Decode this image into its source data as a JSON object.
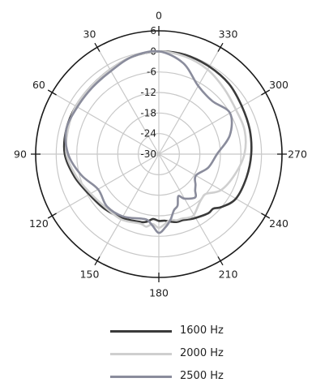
{
  "chart_data": {
    "type": "polar-line",
    "angle_labels": [
      "0",
      "30",
      "60",
      "90",
      "120",
      "150",
      "180",
      "210",
      "240",
      "270",
      "300",
      "330"
    ],
    "ring_labels": [
      "6",
      "0",
      "-6",
      "-12",
      "-18",
      "-24",
      "-30"
    ],
    "radial_range_db": [
      -30,
      6
    ],
    "ring_step_db": 6,
    "angle_direction": "counterclockwise",
    "grid": true,
    "legend_position": "bottom",
    "series": [
      {
        "name": "1600 Hz",
        "color": "#3a3a3a",
        "angles_deg": [
          0,
          15,
          30,
          45,
          60,
          75,
          90,
          105,
          120,
          135,
          150,
          165,
          170,
          175,
          180,
          185,
          190,
          195,
          200,
          205,
          210,
          220,
          225,
          230,
          240,
          255,
          270,
          285,
          300,
          315,
          330,
          345
        ],
        "values_db": [
          0,
          -0.5,
          -1.5,
          -2,
          -2,
          -2,
          -2.5,
          -4.5,
          -6.5,
          -7.5,
          -8.5,
          -9.5,
          -10,
          -11,
          -10.5,
          -10.5,
          -10,
          -9.5,
          -9.5,
          -9,
          -8.5,
          -7.5,
          -7.5,
          -6,
          -4,
          -3.5,
          -3,
          -2.5,
          -2,
          -1,
          -0.5,
          0
        ]
      },
      {
        "name": "2000 Hz",
        "color": "#cfcfcf",
        "angles_deg": [
          0,
          15,
          30,
          45,
          60,
          75,
          90,
          105,
          120,
          135,
          150,
          165,
          170,
          175,
          180,
          185,
          190,
          195,
          200,
          205,
          210,
          220,
          225,
          230,
          240,
          255,
          270,
          285,
          300,
          315,
          330,
          345
        ],
        "values_db": [
          0,
          -0.5,
          -1.5,
          -2,
          -2,
          -2.5,
          -3,
          -5,
          -7,
          -8,
          -8,
          -9,
          -8.5,
          -9.5,
          -8.5,
          -9.5,
          -10.5,
          -10,
          -10,
          -9.5,
          -9.5,
          -11.5,
          -12,
          -12,
          -9,
          -7,
          -5,
          -4,
          -4,
          -3,
          -1.5,
          -0.5
        ]
      },
      {
        "name": "2500 Hz",
        "color": "#8a8c9c",
        "angles_deg": [
          0,
          15,
          30,
          45,
          60,
          75,
          90,
          105,
          120,
          135,
          150,
          165,
          170,
          175,
          180,
          185,
          190,
          195,
          200,
          205,
          210,
          220,
          225,
          230,
          240,
          255,
          270,
          285,
          300,
          315,
          330,
          345
        ],
        "values_db": [
          0,
          -0.5,
          -2,
          -2.5,
          -2.5,
          -2,
          -3.5,
          -6.5,
          -9.5,
          -8.5,
          -9,
          -10.5,
          -10.5,
          -9,
          -7,
          -8.5,
          -10.5,
          -13,
          -14,
          -16.5,
          -15,
          -13.5,
          -15,
          -16,
          -17.5,
          -15,
          -13,
          -8.5,
          -6,
          -8,
          -7,
          -2.5
        ]
      }
    ]
  }
}
